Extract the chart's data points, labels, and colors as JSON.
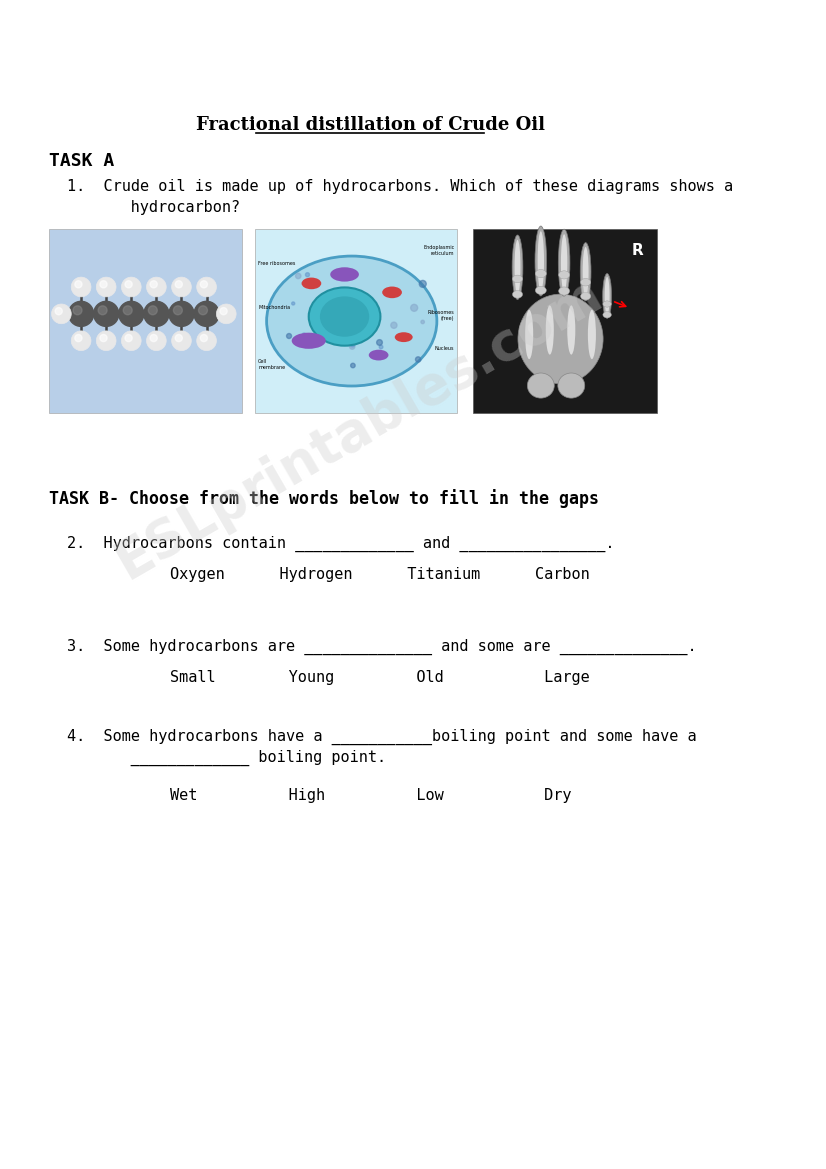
{
  "title": "Fractional distillation of Crude Oil",
  "background_color": "#ffffff",
  "task_a_label": "TASK A",
  "task_b_label": "TASK B- Choose from the words below to fill in the gaps",
  "q1_line1": "1.  Crude oil is made up of hydrocarbons. Which of these diagrams shows a",
  "q1_line2": "     hydrocarbon?",
  "q2_line1": "2.  Hydrocarbons contain _____________ and ________________.",
  "q2_words": "Oxygen      Hydrogen      Titanium      Carbon",
  "q3_line1": "3.  Some hydrocarbons are ______________ and some are ______________.",
  "q3_words": "Small        Young         Old           Large",
  "q4_line1": "4.  Some hydrocarbons have a ___________boiling point and some have a",
  "q4_line2": "     _____________ boiling point.",
  "q4_words": "Wet          High          Low           Dry",
  "watermark": "ESLprintables.com",
  "img1_bg": "#b8cfe8",
  "img2_bg": "#d0eef8",
  "img3_bg": "#1a1a1a",
  "cell_outer": "#a8d8ea",
  "cell_border": "#4a9ec4",
  "cell_nucleus": "#40b8c8",
  "cell_nucleus_border": "#2090a0",
  "organelle_red": "#d04040",
  "organelle_purple": "#8855bb",
  "dark_atom": "#555555",
  "light_atom": "#e8e8e8"
}
